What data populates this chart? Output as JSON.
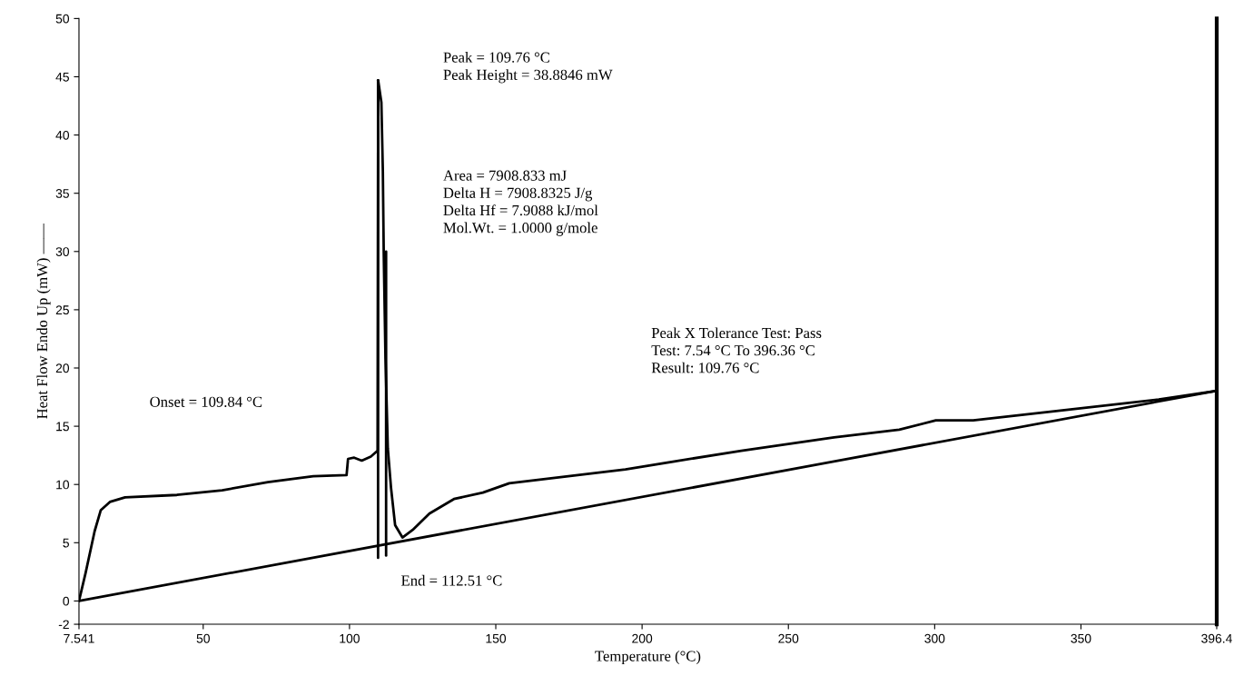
{
  "chart_data": {
    "type": "line",
    "xlabel": "Temperature (°C)",
    "ylabel": "Heat Flow Endo Up (mW) ——",
    "xlim": [
      7.541,
      396.4
    ],
    "ylim": [
      -2,
      50
    ],
    "xticks": [
      7.541,
      50,
      100,
      150,
      200,
      250,
      300,
      350,
      396.4
    ],
    "yticks": [
      -2,
      0,
      5,
      10,
      15,
      20,
      25,
      30,
      35,
      40,
      45,
      50
    ],
    "grid": false,
    "legend": false,
    "line_style": "solid",
    "marker": "none",
    "series": [
      {
        "color": "#000000",
        "x": [
          7.541,
          9.8,
          12.9,
          15.0,
          18.1,
          23.3,
          41.0,
          56.5,
          72.1,
          87.6,
          99.0,
          99.5,
          101.6,
          104.2,
          107.3,
          109.6,
          109.8,
          110.9,
          111.4,
          111.7,
          112.3,
          113.1,
          114.2,
          115.6,
          118.1,
          121.6,
          127.3,
          135.7,
          145.6,
          154.6,
          194.3,
          233.9,
          265.6,
          287.9,
          300.4,
          313.2,
          345.0,
          376.6,
          396.4
        ],
        "values": [
          0,
          2.4,
          6.0,
          7.8,
          8.5,
          8.9,
          9.1,
          9.5,
          10.2,
          10.7,
          10.8,
          12.2,
          12.3,
          12.05,
          12.4,
          12.9,
          44.7,
          42.8,
          36.9,
          29.9,
          20.8,
          13.1,
          9.7,
          6.5,
          5.45,
          6.1,
          7.5,
          8.75,
          9.3,
          10.1,
          11.3,
          12.9,
          14.05,
          14.7,
          15.5,
          15.5,
          16.4,
          17.3,
          18.05
        ]
      },
      {
        "color": "#000000",
        "x": [
          7.541,
          396.4
        ],
        "values": [
          0,
          18.05
        ]
      },
      {
        "color": "#000000",
        "x": [
          109.76,
          109.76
        ],
        "values": [
          3.7,
          44.7
        ]
      },
      {
        "color": "#000000",
        "x": [
          112.51,
          112.51
        ],
        "values": [
          3.9,
          30
        ]
      }
    ],
    "annotations": [
      "Onset = 109.84 °C",
      "End = 112.51 °C",
      "Peak = 109.76 °C\nPeak Height = 38.8846 mW",
      "Area = 7908.833 mJ\nDelta H = 7908.8325 J/g\nDelta Hf = 7.9088 kJ/mol\nMol.Wt. = 1.0000 g/mole",
      "Peak X Tolerance Test: Pass\nTest: 7.54 °C To 396.36 °C\nResult: 109.76 °C"
    ]
  }
}
